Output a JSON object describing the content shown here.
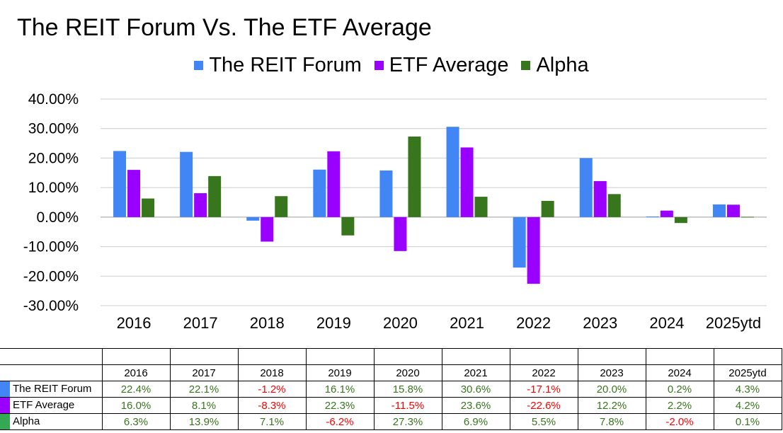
{
  "chart_data": {
    "type": "bar",
    "title": "The REIT Forum Vs. The ETF Average",
    "categories": [
      "2016",
      "2017",
      "2018",
      "2019",
      "2020",
      "2021",
      "2022",
      "2023",
      "2024",
      "2025ytd"
    ],
    "series": [
      {
        "name": "The REIT Forum",
        "color": "#4285f4",
        "values": [
          22.4,
          22.1,
          -1.2,
          16.1,
          15.8,
          30.6,
          -17.1,
          20.0,
          0.2,
          4.3
        ]
      },
      {
        "name": "ETF Average",
        "color": "#9900ff",
        "values": [
          16.0,
          8.1,
          -8.3,
          22.3,
          -11.5,
          23.6,
          -22.6,
          12.2,
          2.2,
          4.2
        ]
      },
      {
        "name": "Alpha",
        "color": "#38761d",
        "values": [
          6.3,
          13.9,
          7.1,
          -6.2,
          27.3,
          6.9,
          5.5,
          7.8,
          -2.0,
          0.1
        ]
      }
    ],
    "ylim": [
      -30,
      40
    ],
    "yticks": [
      "40.00%",
      "30.00%",
      "20.00%",
      "10.00%",
      "0.00%",
      "-10.00%",
      "-20.00%",
      "-30.00%"
    ],
    "grid": true,
    "legend_position": "top"
  },
  "table": {
    "headers": [
      "2016",
      "2017",
      "2018",
      "2019",
      "2020",
      "2021",
      "2022",
      "2023",
      "2024",
      "2025ytd"
    ],
    "rows": [
      {
        "label": "The REIT Forum",
        "swatch": "#4285f4",
        "cells": [
          "22.4%",
          "22.1%",
          "-1.2%",
          "16.1%",
          "15.8%",
          "30.6%",
          "-17.1%",
          "20.0%",
          "0.2%",
          "4.3%"
        ]
      },
      {
        "label": "ETF Average",
        "swatch": "#9900ff",
        "cells": [
          "16.0%",
          "8.1%",
          "-8.3%",
          "22.3%",
          "-11.5%",
          "23.6%",
          "-22.6%",
          "12.2%",
          "2.2%",
          "4.2%"
        ]
      },
      {
        "label": "Alpha",
        "swatch": "#34a853",
        "cells": [
          "6.3%",
          "13.9%",
          "7.1%",
          "-6.2%",
          "27.3%",
          "6.9%",
          "5.5%",
          "7.8%",
          "-2.0%",
          "0.1%"
        ]
      }
    ]
  }
}
